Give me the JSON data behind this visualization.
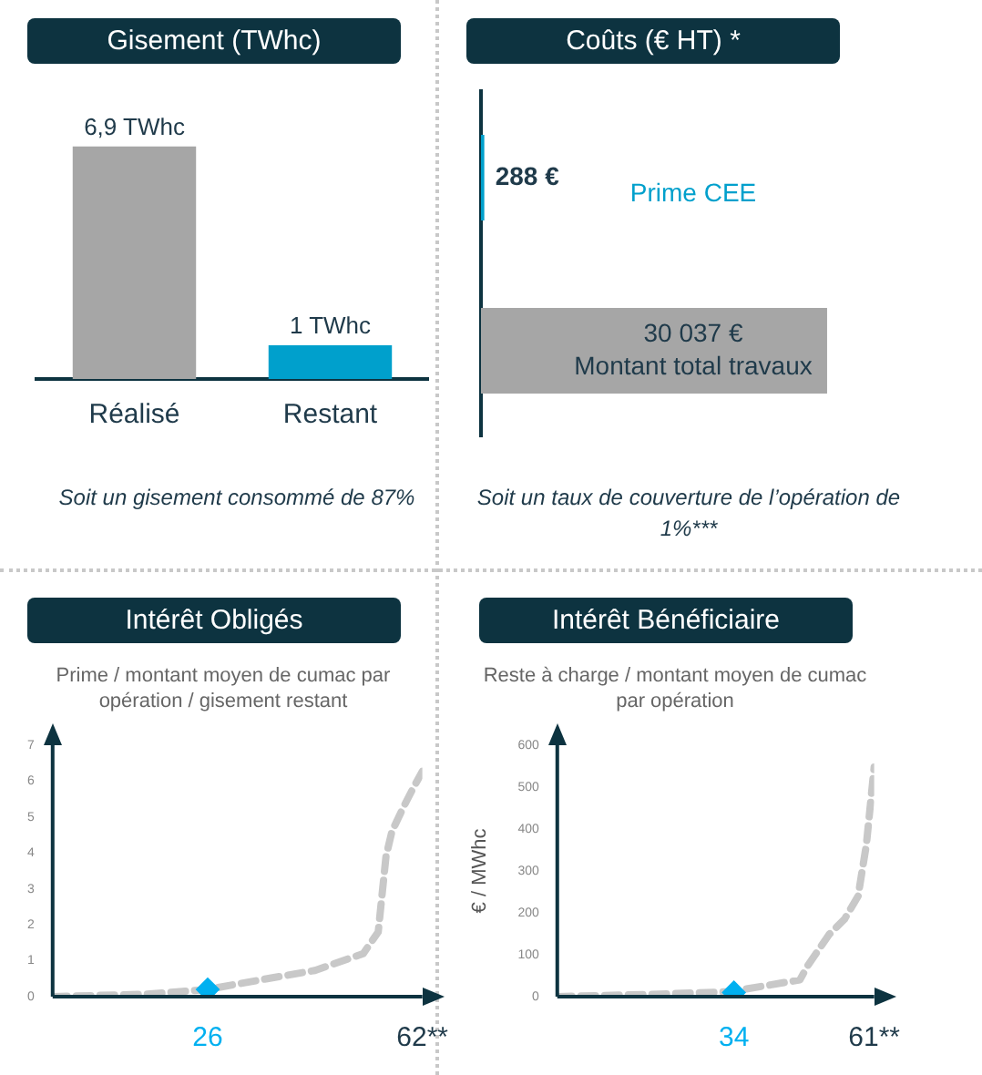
{
  "chart_data": [
    {
      "type": "bar",
      "title": "Gisement (TWhc)",
      "categories": [
        "Réalisé",
        "Restant"
      ],
      "values": [
        6.9,
        1
      ],
      "colors": [
        "#a6a6a6",
        "#00a0cc"
      ],
      "value_labels": [
        "6,9 TWhc",
        "1 TWhc"
      ],
      "annotations": [
        "Soit un gisement consommé de 87%"
      ]
    },
    {
      "type": "bar",
      "orientation": "horizontal",
      "title": "Coûts (€ HT) *",
      "categories": [
        "Prime CEE",
        "Montant total travaux"
      ],
      "values": [
        288,
        30037
      ],
      "colors": [
        "#00a0cc",
        "#a6a6a6"
      ],
      "value_labels": [
        "288 €",
        "30 037 €"
      ],
      "annotations": [
        "Soit un taux de couverture de l’opération de 1%***"
      ]
    },
    {
      "type": "line",
      "title": "Intérêt Obligés",
      "subtitle": "Prime / montant moyen de cumac par opération / gisement restant",
      "line_style": "dashed",
      "grid": false,
      "xlim": [
        0,
        62
      ],
      "xticks": [
        {
          "value": 26,
          "label": "26"
        },
        {
          "value": 62,
          "label": "62**"
        }
      ],
      "ylim": [
        0,
        7
      ],
      "yticks": [
        0,
        1,
        2,
        3,
        4,
        5,
        6,
        7
      ],
      "series": [
        {
          "type": "line",
          "color": "#c8c8c8",
          "marker": "none",
          "x": [
            0,
            15.8,
            25.9,
            36,
            44,
            52.1,
            54.6,
            55.9,
            56.9,
            58.9,
            60.6,
            62
          ],
          "values": [
            0,
            0.07,
            0.2,
            0.5,
            0.73,
            1.2,
            1.8,
            3.9,
            4.6,
            5.3,
            5.85,
            6.27
          ]
        },
        {
          "type": "scatter",
          "color": "#00b0f0",
          "marker": "diamond",
          "x": [
            26
          ],
          "values": [
            0.2
          ]
        }
      ]
    },
    {
      "type": "line",
      "title": "Intérêt Bénéficiaire",
      "subtitle": "Reste à charge / montant moyen de cumac par opération",
      "ylabel": "€ / MWhc",
      "line_style": "dashed",
      "grid": false,
      "xlim": [
        0,
        61
      ],
      "xticks": [
        {
          "value": 34,
          "label": "34"
        },
        {
          "value": 61,
          "label": "61**"
        }
      ],
      "ylim": [
        0,
        600
      ],
      "yticks": [
        0,
        100,
        200,
        300,
        400,
        500,
        600
      ],
      "series": [
        {
          "type": "line",
          "color": "#c8c8c8",
          "marker": "none",
          "x": [
            0,
            19.6,
            33.4,
            41,
            46.7,
            48.2,
            52.3,
            55.3,
            57.9,
            59.5,
            61
          ],
          "values": [
            0,
            6,
            12,
            28,
            40,
            74,
            148,
            185,
            240,
            363,
            548
          ]
        },
        {
          "type": "scatter",
          "color": "#00b0f0",
          "marker": "diamond",
          "x": [
            34
          ],
          "values": [
            10
          ]
        }
      ]
    }
  ]
}
